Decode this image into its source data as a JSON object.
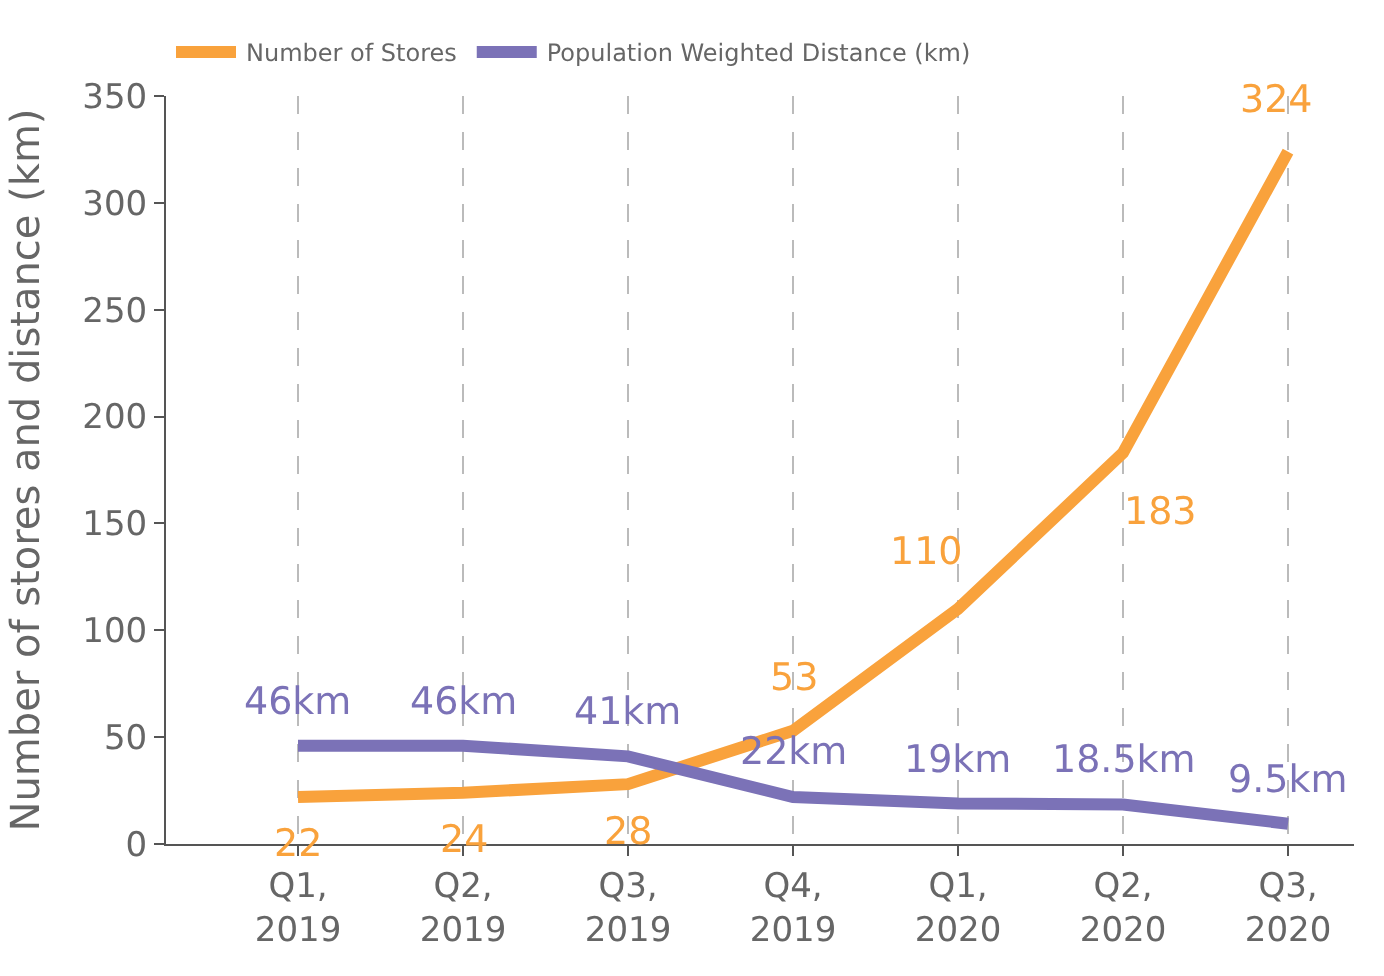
{
  "chart_data": {
    "type": "line",
    "categories": [
      "Q1,\n2019",
      "Q2,\n2019",
      "Q3,\n2019",
      "Q4,\n2019",
      "Q1,\n2020",
      "Q2,\n2020",
      "Q3,\n2020"
    ],
    "ylabel": "Number of stores and distance (km)",
    "series": [
      {
        "name": "Number of Stores",
        "color": "#f9a23c",
        "values": [
          22,
          24,
          28,
          53,
          110,
          183,
          324
        ],
        "value_labels": [
          "22",
          "24",
          "28",
          "53",
          "110",
          "183",
          "324"
        ]
      },
      {
        "name": "Population Weighted Distance (km)",
        "color": "#7b72b7",
        "values": [
          46,
          46,
          41,
          22,
          19,
          18.5,
          9.5
        ],
        "value_labels": [
          "46km",
          "46km",
          "41km",
          "22km",
          "19km",
          "18.5km",
          "9.5km"
        ]
      }
    ],
    "ylim": [
      0,
      350
    ],
    "yticks": [
      0,
      50,
      100,
      150,
      200,
      250,
      300,
      350
    ],
    "grid": "x",
    "legend": "top left",
    "marker": "none",
    "line_style": "solid"
  }
}
